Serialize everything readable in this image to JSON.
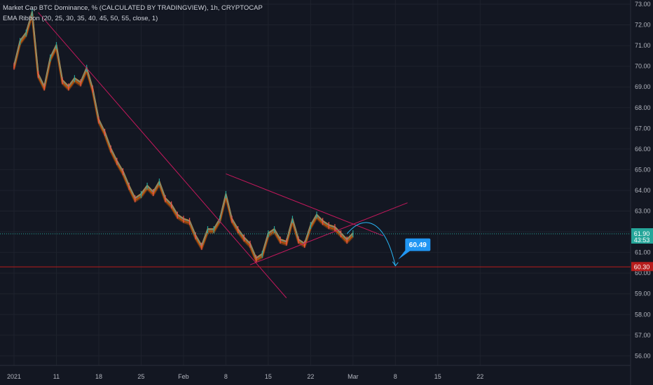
{
  "legend": {
    "line1": "Market Cap BTC Dominance, % (CALCULATED BY TRADINGVIEW), 1h, CRYPTOCAP",
    "line2": "EMA Ribbon (20, 25, 30, 35, 40, 45, 50, 55, close, 1)"
  },
  "colors": {
    "background": "#131722",
    "grid": "#1e222d",
    "trendline": "#c2185b",
    "support_line": "#b71c1c",
    "price_line": "#26a69a",
    "candle_up": "#26a69a",
    "candle_down": "#ef5350",
    "ribbon_outer": "#ff6d00",
    "ribbon_inner": "#ffb74d",
    "projection": "#29b6f6"
  },
  "price_badge": {
    "value": "61.90",
    "countdown": "43:53",
    "color": "#26a69a"
  },
  "support_badge": {
    "value": "60.30",
    "color": "#b71c1c"
  },
  "target_label": {
    "value": "60.49",
    "color": "#2196f3"
  },
  "chart_data": {
    "type": "line",
    "title": "Market Cap BTC Dominance, % (CALCULATED BY TRADINGVIEW), 1h, CRYPTOCAP",
    "xlabel": "",
    "ylabel": "",
    "y_ticks": [
      "73.00",
      "72.00",
      "71.00",
      "70.00",
      "69.00",
      "68.00",
      "67.00",
      "66.00",
      "65.00",
      "64.00",
      "63.00",
      "62.00",
      "61.00",
      "60.00",
      "59.00",
      "58.00",
      "57.00",
      "56.00"
    ],
    "x_tick_labels": [
      "2021",
      "11",
      "18",
      "25",
      "Feb",
      "8",
      "15",
      "22",
      "Mar",
      "8",
      "15",
      "22"
    ],
    "x_ticks": [
      "2021-01-04",
      "2021-01-11",
      "2021-01-18",
      "2021-01-25",
      "2021-02-01",
      "2021-02-08",
      "2021-02-15",
      "2021-02-22",
      "2021-03-01",
      "2021-03-08",
      "2021-03-15",
      "2021-03-22"
    ],
    "ylim": [
      55.5,
      73.0
    ],
    "xlim": [
      "2021-01-04",
      "2021-03-28"
    ],
    "grid": true,
    "series": [
      {
        "x": [
          "2021-01-04",
          "2021-01-05",
          "2021-01-06",
          "2021-01-07",
          "2021-01-08",
          "2021-01-09",
          "2021-01-10",
          "2021-01-11",
          "2021-01-12",
          "2021-01-13",
          "2021-01-14",
          "2021-01-15",
          "2021-01-16",
          "2021-01-17",
          "2021-01-18",
          "2021-01-19",
          "2021-01-20",
          "2021-01-21",
          "2021-01-22",
          "2021-01-23",
          "2021-01-24",
          "2021-01-25",
          "2021-01-26",
          "2021-01-27",
          "2021-01-28",
          "2021-01-29",
          "2021-01-30",
          "2021-01-31",
          "2021-02-01",
          "2021-02-02",
          "2021-02-03",
          "2021-02-04",
          "2021-02-05",
          "2021-02-06",
          "2021-02-07",
          "2021-02-08",
          "2021-02-09",
          "2021-02-10",
          "2021-02-11",
          "2021-02-12",
          "2021-02-13",
          "2021-02-14",
          "2021-02-15",
          "2021-02-16",
          "2021-02-17",
          "2021-02-18",
          "2021-02-19",
          "2021-02-20",
          "2021-02-21",
          "2021-02-22",
          "2021-02-23",
          "2021-02-24",
          "2021-02-25",
          "2021-02-26",
          "2021-02-27",
          "2021-02-28",
          "2021-03-01"
        ],
        "values": [
          70.0,
          71.2,
          71.6,
          72.6,
          69.6,
          69.0,
          70.4,
          71.0,
          69.3,
          69.0,
          69.4,
          69.2,
          69.9,
          68.9,
          67.4,
          66.8,
          66.0,
          65.4,
          64.9,
          64.2,
          63.6,
          63.8,
          64.2,
          63.9,
          64.4,
          63.6,
          63.3,
          62.8,
          62.6,
          62.5,
          61.8,
          61.3,
          62.1,
          62.1,
          62.6,
          63.8,
          62.6,
          62.1,
          61.7,
          61.4,
          60.7,
          60.9,
          61.9,
          62.1,
          61.6,
          61.5,
          62.6,
          61.6,
          61.4,
          62.3,
          62.8,
          62.5,
          62.3,
          62.2,
          61.9,
          61.6,
          61.9
        ]
      }
    ],
    "annotations": {
      "descending_trendline": {
        "from": [
          "2021-01-08",
          72.6
        ],
        "to": [
          "2021-02-18",
          58.8
        ]
      },
      "triangle_upper": {
        "from": [
          "2021-02-08",
          64.8
        ],
        "to": [
          "2021-03-06",
          61.8
        ]
      },
      "triangle_lower": {
        "from": [
          "2021-02-12",
          60.4
        ],
        "to": [
          "2021-03-10",
          63.4
        ]
      },
      "support_level": 60.3,
      "projection_path": {
        "from": [
          "2021-02-28",
          61.9
        ],
        "to": [
          "2021-03-08",
          60.35
        ]
      },
      "target": [
        "2021-03-08",
        60.49
      ]
    }
  }
}
